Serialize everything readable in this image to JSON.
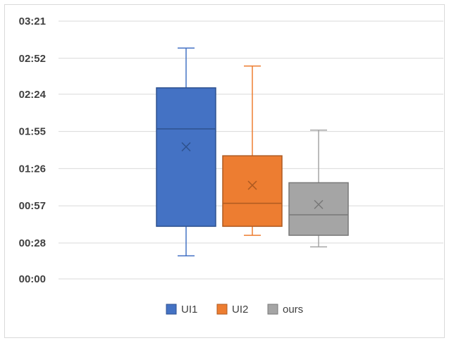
{
  "chart_data": {
    "type": "box",
    "title": "",
    "xlabel": "",
    "ylabel": "",
    "y_unit": "mm:ss",
    "ylim": [
      "00:00",
      "03:21"
    ],
    "y_ticks": [
      "00:00",
      "00:28",
      "00:57",
      "01:26",
      "01:55",
      "02:24",
      "02:52",
      "03:21"
    ],
    "grid": true,
    "legend_position": "bottom",
    "series": [
      {
        "name": "UI1",
        "color": "#4472c4",
        "min": "00:18",
        "q1": "00:41",
        "median": "01:57",
        "q3": "02:29",
        "max": "03:00",
        "mean": "01:43"
      },
      {
        "name": "UI2",
        "color": "#ed7d31",
        "min": "00:34",
        "q1": "00:41",
        "median": "00:59",
        "q3": "01:36",
        "max": "02:46",
        "mean": "01:13"
      },
      {
        "name": "ours",
        "color": "#a5a5a5",
        "min": "00:25",
        "q1": "00:34",
        "median": "00:50",
        "q3": "01:15",
        "max": "01:56",
        "mean": "00:58"
      }
    ]
  }
}
